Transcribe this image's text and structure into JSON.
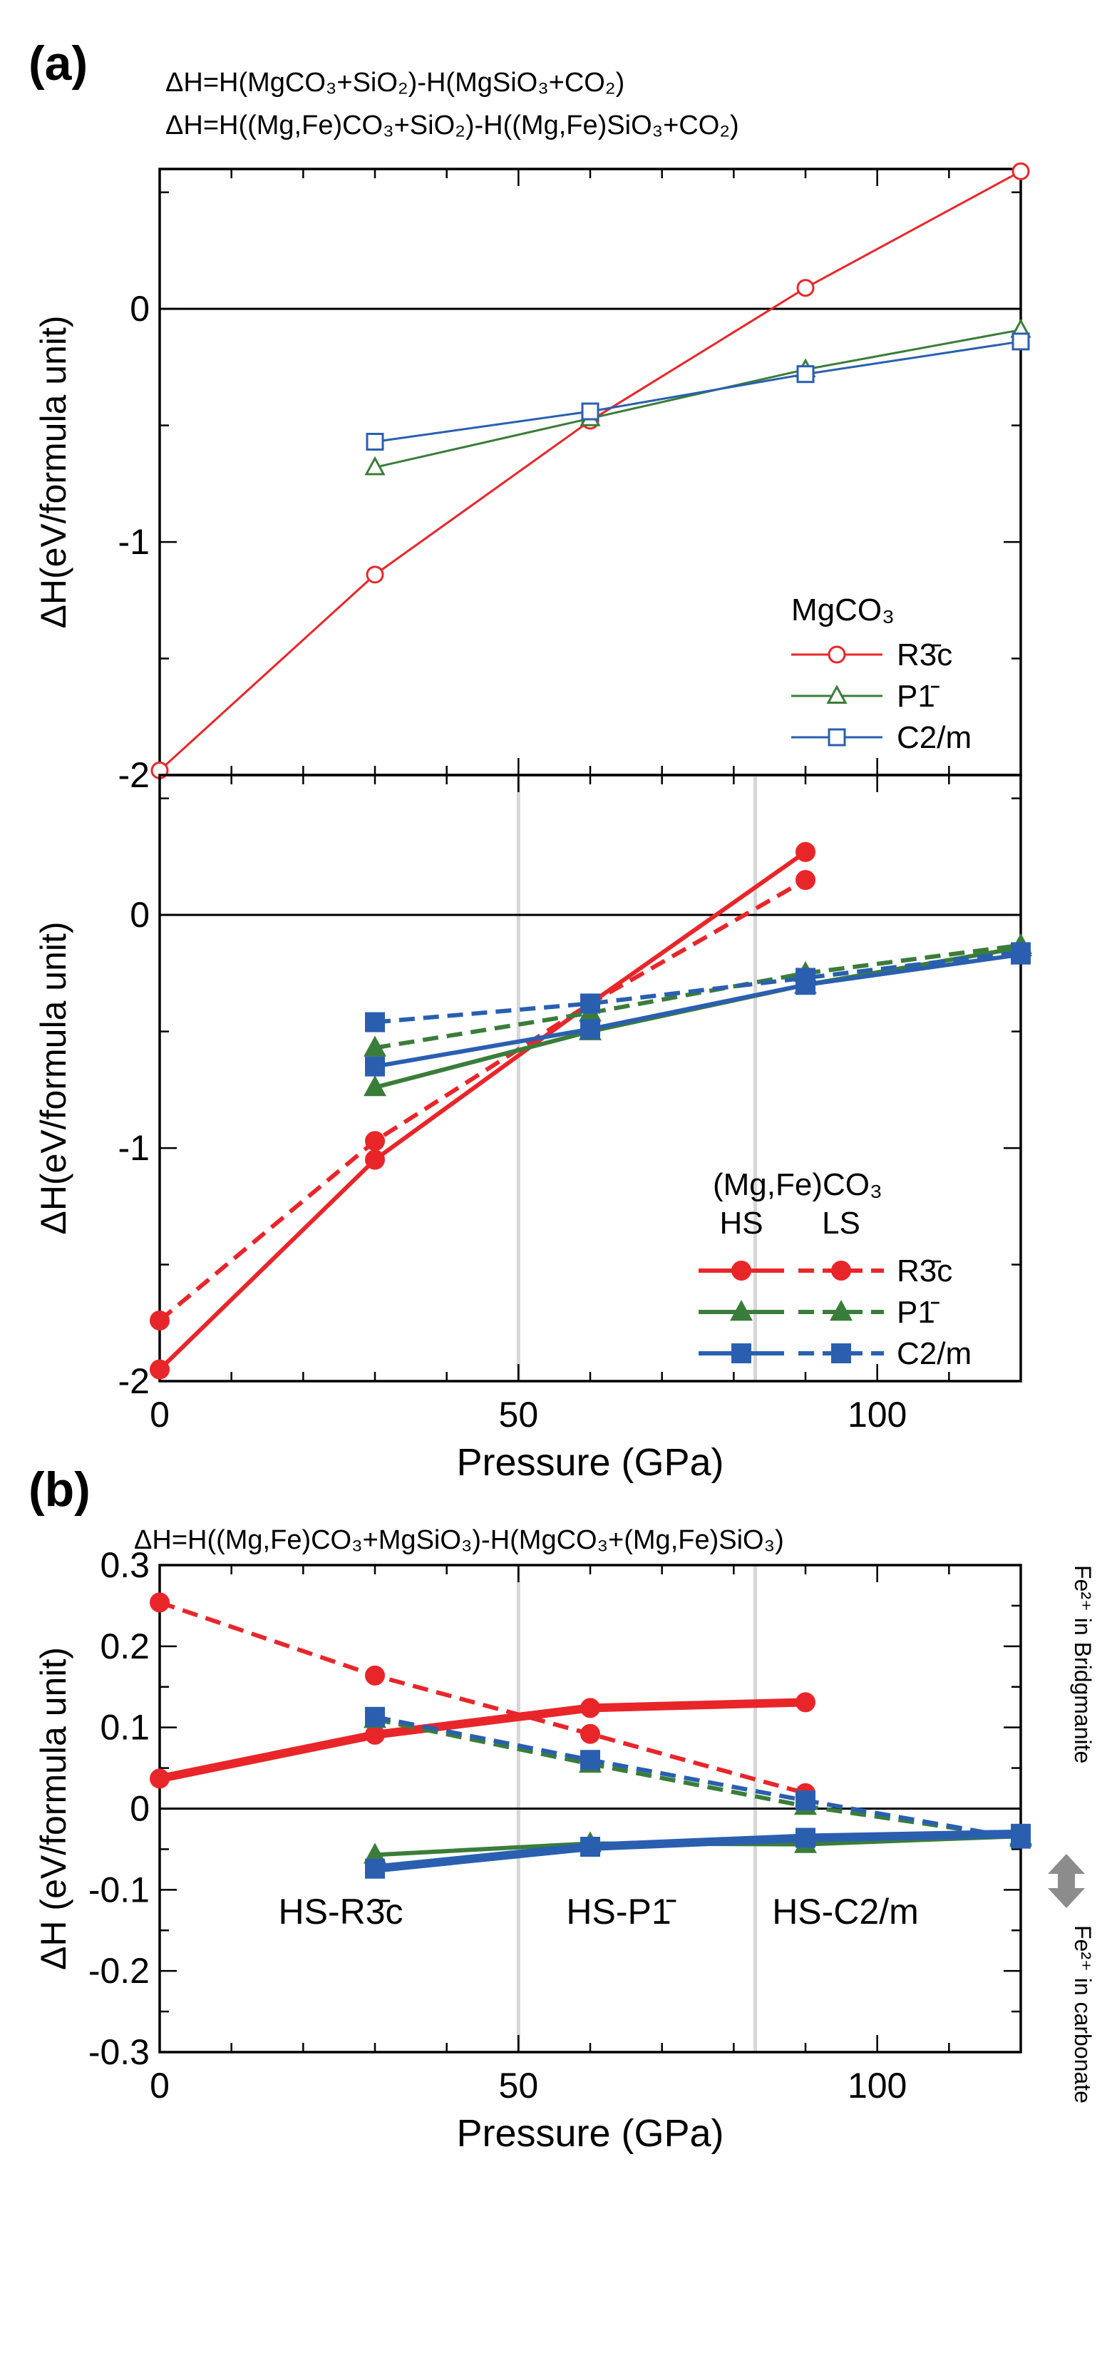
{
  "figure": {
    "panel_a_label": "(a)",
    "panel_b_label": "(b)",
    "eq_a1": "ΔH=H(MgCO₃+SiO₂)-H(MgSiO₃+CO₂)",
    "eq_a2": "ΔH=H((Mg,Fe)CO₃+SiO₂)-H((Mg,Fe)SiO₃+CO₂)",
    "eq_b": "ΔH=H((Mg,Fe)CO₃+MgSiO₃)-H(MgCO₃+(Mg,Fe)SiO₃)",
    "side_top": "Fe²⁺ in Bridgmanite",
    "side_bottom": "Fe²⁺ in carbonate"
  },
  "chart_data": [
    {
      "id": "a_top",
      "type": "line",
      "ylabel": "ΔH(eV/formula unit)",
      "xlabel": "",
      "xlim": [
        0,
        120
      ],
      "ylim": [
        -2,
        0.6
      ],
      "yticks": [
        -2,
        -1,
        0
      ],
      "ytick_labels": [
        "-2",
        "-1",
        "0"
      ],
      "xticks": [
        0,
        50,
        100
      ],
      "legend_title": "MgCO₃",
      "legend_position": "bottom-right",
      "series": [
        {
          "name": "R3̄c",
          "color": "#e8262a",
          "marker": "circle-open",
          "dash": "solid",
          "x": [
            0,
            30,
            60,
            90,
            120
          ],
          "values": [
            -1.98,
            -1.14,
            -0.48,
            0.09,
            0.59
          ]
        },
        {
          "name": "P1̄",
          "color": "#3a7d3a",
          "marker": "triangle-open",
          "dash": "solid",
          "x": [
            30,
            60,
            90,
            120
          ],
          "values": [
            -0.68,
            -0.47,
            -0.26,
            -0.09
          ]
        },
        {
          "name": "C2/m",
          "color": "#2a5fb0",
          "marker": "square-open",
          "dash": "solid",
          "x": [
            30,
            60,
            90,
            120
          ],
          "values": [
            -0.57,
            -0.44,
            -0.28,
            -0.14
          ]
        }
      ]
    },
    {
      "id": "a_bottom",
      "type": "line",
      "ylabel": "ΔH(eV/formula unit)",
      "xlabel": "Pressure (GPa)",
      "xlim": [
        0,
        120
      ],
      "ylim": [
        -2,
        0.6
      ],
      "yticks": [
        -2,
        -1,
        0
      ],
      "ytick_labels": [
        "-2",
        "-1",
        "0"
      ],
      "xticks": [
        0,
        50,
        100
      ],
      "xtick_labels": [
        "0",
        "50",
        "100"
      ],
      "vlines": [
        50,
        83
      ],
      "legend_title": "(Mg,Fe)CO₃",
      "legend_hs": "HS",
      "legend_ls": "LS",
      "legend_position": "bottom-right",
      "series": [
        {
          "name": "HS R3̄c",
          "color": "#e8262a",
          "marker": "circle",
          "dash": "solid",
          "x": [
            0,
            30,
            60,
            90
          ],
          "values": [
            -1.95,
            -1.05,
            -0.38,
            0.27
          ]
        },
        {
          "name": "LS R3̄c",
          "color": "#e8262a",
          "marker": "circle",
          "dash": "dashed",
          "x": [
            0,
            30,
            60,
            90
          ],
          "values": [
            -1.74,
            -0.97,
            -0.38,
            0.15
          ]
        },
        {
          "name": "HS P1̄",
          "color": "#3a7d3a",
          "marker": "triangle",
          "dash": "solid",
          "x": [
            30,
            60,
            90,
            120
          ],
          "values": [
            -0.74,
            -0.5,
            -0.3,
            -0.14
          ]
        },
        {
          "name": "LS P1̄",
          "color": "#3a7d3a",
          "marker": "triangle",
          "dash": "dashed",
          "x": [
            30,
            60,
            90,
            120
          ],
          "values": [
            -0.57,
            -0.42,
            -0.25,
            -0.13
          ]
        },
        {
          "name": "HS C2/m",
          "color": "#2a5fb0",
          "marker": "square",
          "dash": "solid",
          "x": [
            30,
            60,
            90,
            120
          ],
          "values": [
            -0.65,
            -0.49,
            -0.3,
            -0.17
          ]
        },
        {
          "name": "LS C2/m",
          "color": "#2a5fb0",
          "marker": "square",
          "dash": "dashed",
          "x": [
            30,
            60,
            90,
            120
          ],
          "values": [
            -0.46,
            -0.38,
            -0.27,
            -0.16
          ]
        }
      ],
      "legend_labels": [
        "R3̄c",
        "P1̄",
        "C2/m"
      ]
    },
    {
      "id": "b",
      "type": "line",
      "ylabel": "ΔH (eV/formula unit)",
      "xlabel": "Pressure (GPa)",
      "xlim": [
        0,
        120
      ],
      "ylim": [
        -0.3,
        0.3
      ],
      "yticks": [
        -0.3,
        -0.2,
        -0.1,
        0,
        0.1,
        0.2,
        0.3
      ],
      "ytick_labels": [
        "-0.3",
        "-0.2",
        "-0.1",
        "0",
        "0.1",
        "0.2",
        "0.3"
      ],
      "xticks": [
        0,
        50,
        100
      ],
      "xtick_labels": [
        "0",
        "50",
        "100"
      ],
      "vlines": [
        50,
        83
      ],
      "annotations": [
        "HS-R3̄c",
        "HS-P1̄",
        "HS-C2/m"
      ],
      "series": [
        {
          "name": "HS R3̄c",
          "color": "#e8262a",
          "marker": "circle",
          "dash": "solid",
          "thick": true,
          "x": [
            0,
            30,
            60,
            90
          ],
          "values": [
            0.037,
            0.091,
            0.124,
            0.131
          ]
        },
        {
          "name": "LS R3̄c",
          "color": "#e8262a",
          "marker": "circle",
          "dash": "dashed",
          "x": [
            0,
            30,
            60,
            90
          ],
          "values": [
            0.254,
            0.164,
            0.092,
            0.019
          ]
        },
        {
          "name": "HS P1̄",
          "color": "#3a7d3a",
          "marker": "triangle",
          "dash": "solid",
          "x": [
            30,
            60,
            90,
            120
          ],
          "values": [
            -0.057,
            -0.043,
            -0.044,
            -0.034
          ]
        },
        {
          "name": "LS P1̄",
          "color": "#3a7d3a",
          "marker": "triangle",
          "dash": "dashed",
          "x": [
            30,
            60,
            90,
            120
          ],
          "values": [
            0.11,
            0.055,
            0.003,
            -0.036
          ]
        },
        {
          "name": "HS C2/m",
          "color": "#2a5fb0",
          "marker": "square",
          "dash": "solid",
          "thick": true,
          "x": [
            30,
            60,
            90,
            120
          ],
          "values": [
            -0.074,
            -0.047,
            -0.036,
            -0.031
          ]
        },
        {
          "name": "LS C2/m",
          "color": "#2a5fb0",
          "marker": "square",
          "dash": "dashed",
          "x": [
            30,
            60,
            90,
            120
          ],
          "values": [
            0.113,
            0.06,
            0.01,
            -0.037
          ]
        }
      ]
    }
  ]
}
